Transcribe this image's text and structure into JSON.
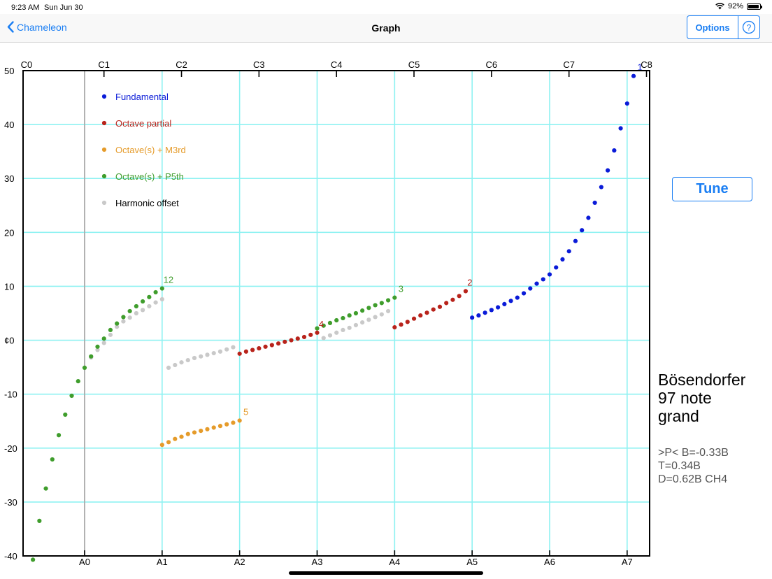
{
  "status_bar": {
    "time": "9:23 AM",
    "date": "Sun Jun 30",
    "battery": "92%",
    "battery_level": 0.92
  },
  "nav": {
    "back_label": "Chameleon",
    "title": "Graph",
    "options_label": "Options",
    "help_icon": "question-circle-icon"
  },
  "tune_label": "Tune",
  "piano": {
    "name_lines": [
      "Bösendorfer",
      "97 note",
      "grand"
    ],
    "param_lines": [
      ">P< B=-0.33B",
      "T=0.34B",
      "D=0.62B CH4"
    ]
  },
  "chart_data": {
    "type": "scatter",
    "grid": true,
    "legend_position": "top-left",
    "ylim": [
      -40,
      50
    ],
    "y_ticks": [
      50,
      40,
      30,
      20,
      10,
      0,
      -10,
      -20,
      -30,
      -40
    ],
    "y_tick_labels": [
      "50",
      "40",
      "30",
      "20",
      "10",
      "¢0",
      "-10",
      "-20",
      "-30",
      "-40"
    ],
    "x_unit": "semitone index (A0 = 0)",
    "xlim": [
      -9,
      87.5
    ],
    "top_ticks": [
      {
        "label": "C0",
        "x": -9
      },
      {
        "label": "C1",
        "x": 3
      },
      {
        "label": "C2",
        "x": 15
      },
      {
        "label": "C3",
        "x": 27
      },
      {
        "label": "C4",
        "x": 39
      },
      {
        "label": "C5",
        "x": 51
      },
      {
        "label": "C6",
        "x": 63
      },
      {
        "label": "C7",
        "x": 75
      },
      {
        "label": "C8",
        "x": 87
      }
    ],
    "bottom_ticks": [
      {
        "label": "A0",
        "x": 0
      },
      {
        "label": "A1",
        "x": 12
      },
      {
        "label": "A2",
        "x": 24
      },
      {
        "label": "A3",
        "x": 36
      },
      {
        "label": "A4",
        "x": 48
      },
      {
        "label": "A5",
        "x": 60
      },
      {
        "label": "A6",
        "x": 72
      },
      {
        "label": "A7",
        "x": 84
      }
    ],
    "colors": {
      "Fundamental": "#0a1bd8",
      "Octave partial": "#b8231b",
      "Octave(s) + M3rd": "#e59b2a",
      "Octave(s) + P5th": "#3f9d2c",
      "Harmonic offset": "#c9c9c9",
      "grid": "#8ff2f2",
      "a0_line": "#aaaaaa"
    },
    "legend": [
      {
        "name": "Fundamental",
        "text_color": "#0a1bd8"
      },
      {
        "name": "Octave partial",
        "text_color": "#b8231b"
      },
      {
        "name": "Octave(s) + M3rd",
        "text_color": "#e59b2a"
      },
      {
        "name": "Octave(s) + P5th",
        "text_color": "#3f9d2c"
      },
      {
        "name": "Harmonic offset",
        "text_color": "#000000"
      }
    ],
    "series": [
      {
        "name": "Harmonic offset",
        "segments": [
          {
            "x": [
              1,
              2,
              3,
              4,
              5,
              6,
              7,
              8,
              9,
              10,
              11,
              12
            ],
            "y": [
              -3.2,
              -1.8,
              -0.5,
              1.0,
              2.5,
              3.5,
              4.2,
              5.0,
              5.6,
              6.3,
              7.0,
              7.6
            ]
          },
          {
            "x": [
              13,
              14,
              15,
              16,
              17,
              18,
              19,
              20,
              21,
              22,
              23
            ],
            "y": [
              -5.1,
              -4.6,
              -4.1,
              -3.7,
              -3.3,
              -3.0,
              -2.7,
              -2.4,
              -2.1,
              -1.7,
              -1.3
            ]
          },
          {
            "x": [
              37,
              38,
              39,
              40,
              41,
              42,
              43,
              44,
              45,
              46,
              47
            ],
            "y": [
              0.4,
              0.9,
              1.4,
              1.9,
              2.3,
              2.8,
              3.3,
              3.8,
              4.3,
              4.8,
              5.4
            ]
          }
        ]
      },
      {
        "name": "Octave(s) + P5th",
        "segments": [
          {
            "x": [
              -8,
              -7,
              -6,
              -5,
              -4,
              -3,
              -2,
              -1,
              0,
              1,
              2,
              3,
              4,
              5,
              6,
              7,
              8,
              9,
              10,
              11,
              12
            ],
            "y": [
              -40.7,
              -33.5,
              -27.5,
              -22.1,
              -17.6,
              -13.8,
              -10.3,
              -7.6,
              -5.1,
              -3.0,
              -1.2,
              0.3,
              1.9,
              3.1,
              4.3,
              5.4,
              6.3,
              7.2,
              8.0,
              8.9,
              9.6
            ],
            "label": "12"
          },
          {
            "x": [
              36,
              37,
              38,
              39,
              40,
              41,
              42,
              43,
              44,
              45,
              46,
              47,
              48
            ],
            "y": [
              2.2,
              2.7,
              3.2,
              3.7,
              4.1,
              4.6,
              5.0,
              5.5,
              6.0,
              6.5,
              6.9,
              7.4,
              7.9
            ],
            "label": "3"
          }
        ]
      },
      {
        "name": "Octave(s) + M3rd",
        "segments": [
          {
            "x": [
              12,
              13,
              14,
              15,
              16,
              17,
              18,
              19,
              20,
              21,
              22,
              23,
              24
            ],
            "y": [
              -19.4,
              -18.9,
              -18.3,
              -17.9,
              -17.4,
              -17.1,
              -16.8,
              -16.5,
              -16.2,
              -15.9,
              -15.6,
              -15.3,
              -14.9
            ],
            "label": "5"
          }
        ]
      },
      {
        "name": "Octave partial",
        "segments": [
          {
            "x": [
              24,
              25,
              26,
              27,
              28,
              29,
              30,
              31,
              32,
              33,
              34,
              35,
              36
            ],
            "y": [
              -2.5,
              -2.1,
              -1.8,
              -1.5,
              -1.2,
              -0.9,
              -0.6,
              -0.3,
              0.0,
              0.3,
              0.6,
              1.0,
              1.4
            ],
            "label": "4"
          },
          {
            "x": [
              48,
              49,
              50,
              51,
              52,
              53,
              54,
              55,
              56,
              57,
              58,
              59
            ],
            "y": [
              2.4,
              2.9,
              3.4,
              4.0,
              4.6,
              5.1,
              5.7,
              6.2,
              6.9,
              7.5,
              8.2,
              9.1
            ],
            "label": "2"
          }
        ]
      },
      {
        "name": "Fundamental",
        "segments": [
          {
            "x": [
              60,
              61,
              62,
              63,
              64,
              65,
              66,
              67,
              68,
              69,
              70,
              71,
              72,
              73,
              74,
              75,
              76,
              77,
              78,
              79,
              80,
              81,
              82,
              83,
              84,
              85
            ],
            "y": [
              4.2,
              4.6,
              5.1,
              5.6,
              6.1,
              6.7,
              7.3,
              7.9,
              8.7,
              9.6,
              10.5,
              11.3,
              12.2,
              13.5,
              15.0,
              16.5,
              18.4,
              20.4,
              22.7,
              25.5,
              28.4,
              31.5,
              35.2,
              39.3,
              43.9,
              49.0
            ],
            "label": "1"
          }
        ]
      }
    ]
  }
}
